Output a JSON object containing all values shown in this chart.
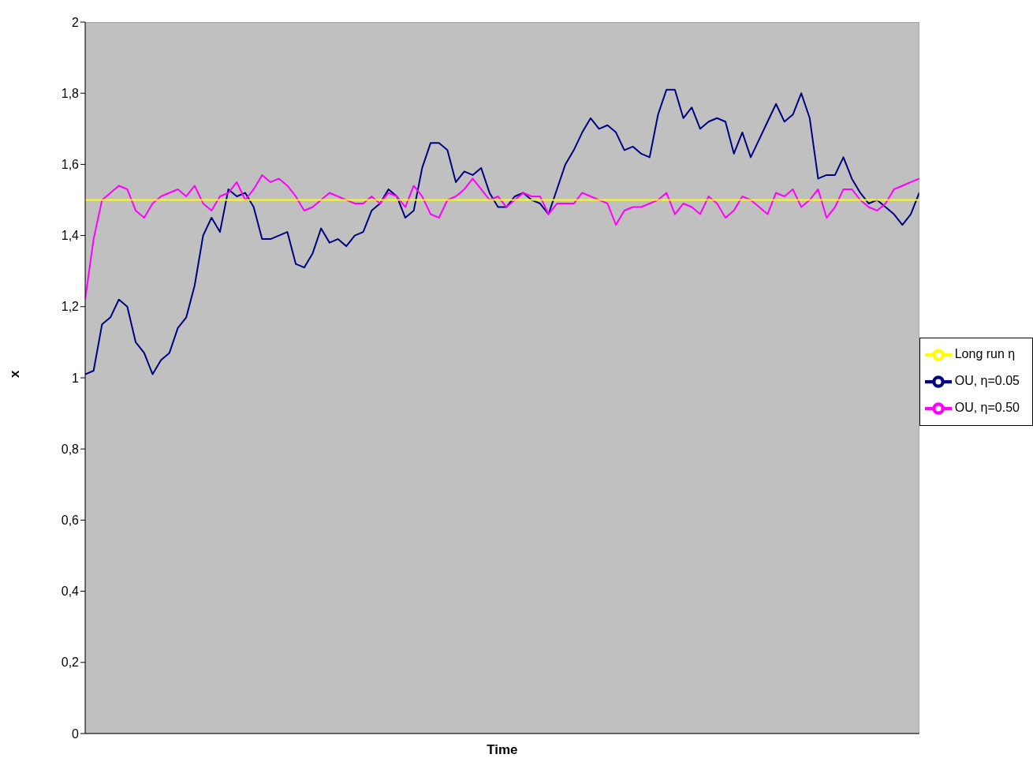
{
  "chart_data": {
    "type": "line",
    "xlabel": "Time",
    "ylabel": "x",
    "categories": [
      null,
      null,
      null,
      null,
      null,
      null,
      null,
      null,
      null,
      null,
      null,
      null,
      null,
      null,
      null,
      null,
      null,
      null,
      null,
      null,
      null,
      null,
      null,
      null,
      null,
      null,
      null,
      null,
      null,
      null,
      null,
      null,
      null,
      null,
      null,
      null,
      null,
      null,
      null,
      null,
      null,
      null,
      null,
      null,
      null,
      null,
      null,
      null,
      null,
      null,
      null,
      null,
      null,
      null,
      null,
      null,
      null,
      null,
      null,
      null,
      null,
      null,
      null,
      null,
      null,
      null,
      null,
      null,
      null,
      null,
      null,
      null,
      null,
      null,
      null,
      null,
      null,
      null,
      null,
      null,
      null,
      null,
      null,
      null,
      null,
      null,
      null,
      null,
      null,
      null,
      null,
      null,
      null,
      null,
      null,
      null,
      null,
      null,
      null,
      null
    ],
    "series": [
      {
        "name": "OU, η=0.05",
        "color": "#000080",
        "values": [
          1.01,
          1.02,
          1.15,
          1.17,
          1.22,
          1.2,
          1.1,
          1.07,
          1.01,
          1.05,
          1.07,
          1.14,
          1.17,
          1.26,
          1.4,
          1.45,
          1.41,
          1.53,
          1.51,
          1.52,
          1.48,
          1.39,
          1.39,
          1.4,
          1.41,
          1.32,
          1.31,
          1.35,
          1.42,
          1.38,
          1.39,
          1.37,
          1.4,
          1.41,
          1.47,
          1.49,
          1.53,
          1.51,
          1.45,
          1.47,
          1.59,
          1.66,
          1.66,
          1.64,
          1.55,
          1.58,
          1.57,
          1.59,
          1.52,
          1.48,
          1.48,
          1.51,
          1.52,
          1.5,
          1.49,
          1.46,
          1.53,
          1.6,
          1.64,
          1.69,
          1.73,
          1.7,
          1.71,
          1.69,
          1.64,
          1.65,
          1.63,
          1.62,
          1.74,
          1.81,
          1.81,
          1.73,
          1.76,
          1.7,
          1.72,
          1.73,
          1.72,
          1.63,
          1.69,
          1.62,
          1.67,
          1.72,
          1.77,
          1.72,
          1.74,
          1.8,
          1.73,
          1.56,
          1.57,
          1.57,
          1.62,
          1.56,
          1.52,
          1.49,
          1.5,
          1.48,
          1.46,
          1.43,
          1.46,
          1.52
        ]
      },
      {
        "name": "OU, η=0.50",
        "color": "#ff00ff",
        "values": [
          1.22,
          1.39,
          1.5,
          1.52,
          1.54,
          1.53,
          1.47,
          1.45,
          1.49,
          1.51,
          1.52,
          1.53,
          1.51,
          1.54,
          1.49,
          1.47,
          1.51,
          1.52,
          1.55,
          1.5,
          1.53,
          1.57,
          1.55,
          1.56,
          1.54,
          1.51,
          1.47,
          1.48,
          1.5,
          1.52,
          1.51,
          1.5,
          1.49,
          1.49,
          1.51,
          1.49,
          1.52,
          1.51,
          1.48,
          1.54,
          1.51,
          1.46,
          1.45,
          1.5,
          1.51,
          1.53,
          1.56,
          1.53,
          1.5,
          1.51,
          1.48,
          1.5,
          1.52,
          1.51,
          1.51,
          1.46,
          1.49,
          1.49,
          1.49,
          1.52,
          1.51,
          1.5,
          1.49,
          1.43,
          1.47,
          1.48,
          1.48,
          1.49,
          1.5,
          1.52,
          1.46,
          1.49,
          1.48,
          1.46,
          1.51,
          1.49,
          1.45,
          1.47,
          1.51,
          1.5,
          1.48,
          1.46,
          1.52,
          1.51,
          1.53,
          1.48,
          1.5,
          1.53,
          1.45,
          1.48,
          1.53,
          1.53,
          1.5,
          1.48,
          1.47,
          1.49,
          1.53,
          1.54,
          1.55,
          1.56
        ]
      },
      {
        "name": "Long run η",
        "color": "#ffff00",
        "values": [
          1.5,
          1.5,
          1.5,
          1.5,
          1.5,
          1.5,
          1.5,
          1.5,
          1.5,
          1.5,
          1.5,
          1.5,
          1.5,
          1.5,
          1.5,
          1.5,
          1.5,
          1.5,
          1.5,
          1.5,
          1.5,
          1.5,
          1.5,
          1.5,
          1.5,
          1.5,
          1.5,
          1.5,
          1.5,
          1.5,
          1.5,
          1.5,
          1.5,
          1.5,
          1.5,
          1.5,
          1.5,
          1.5,
          1.5,
          1.5,
          1.5,
          1.5,
          1.5,
          1.5,
          1.5,
          1.5,
          1.5,
          1.5,
          1.5,
          1.5,
          1.5,
          1.5,
          1.5,
          1.5,
          1.5,
          1.5,
          1.5,
          1.5,
          1.5,
          1.5,
          1.5,
          1.5,
          1.5,
          1.5,
          1.5,
          1.5,
          1.5,
          1.5,
          1.5,
          1.5,
          1.5,
          1.5,
          1.5,
          1.5,
          1.5,
          1.5,
          1.5,
          1.5,
          1.5,
          1.5,
          1.5,
          1.5,
          1.5,
          1.5,
          1.5,
          1.5,
          1.5,
          1.5,
          1.5,
          1.5,
          1.5,
          1.5,
          1.5,
          1.5,
          1.5,
          1.5,
          1.5,
          1.5,
          1.5,
          1.5
        ]
      }
    ],
    "ylim": [
      0,
      2
    ],
    "yticks": [
      0,
      {
        "value": 0.2,
        "label": "0,2"
      },
      {
        "value": 0.4,
        "label": "0,4"
      },
      {
        "value": 0.6,
        "label": "0,6"
      },
      {
        "value": 0.8,
        "label": "0,8"
      },
      1,
      {
        "value": 1.2,
        "label": "1,2"
      },
      {
        "value": 1.4,
        "label": "1,4"
      },
      {
        "value": 1.6,
        "label": "1,6"
      },
      {
        "value": 1.8,
        "label": "1,8"
      },
      2
    ],
    "tick_labels": "y",
    "grid": false,
    "legend": "right",
    "marker": "none",
    "line_style": "solid"
  }
}
